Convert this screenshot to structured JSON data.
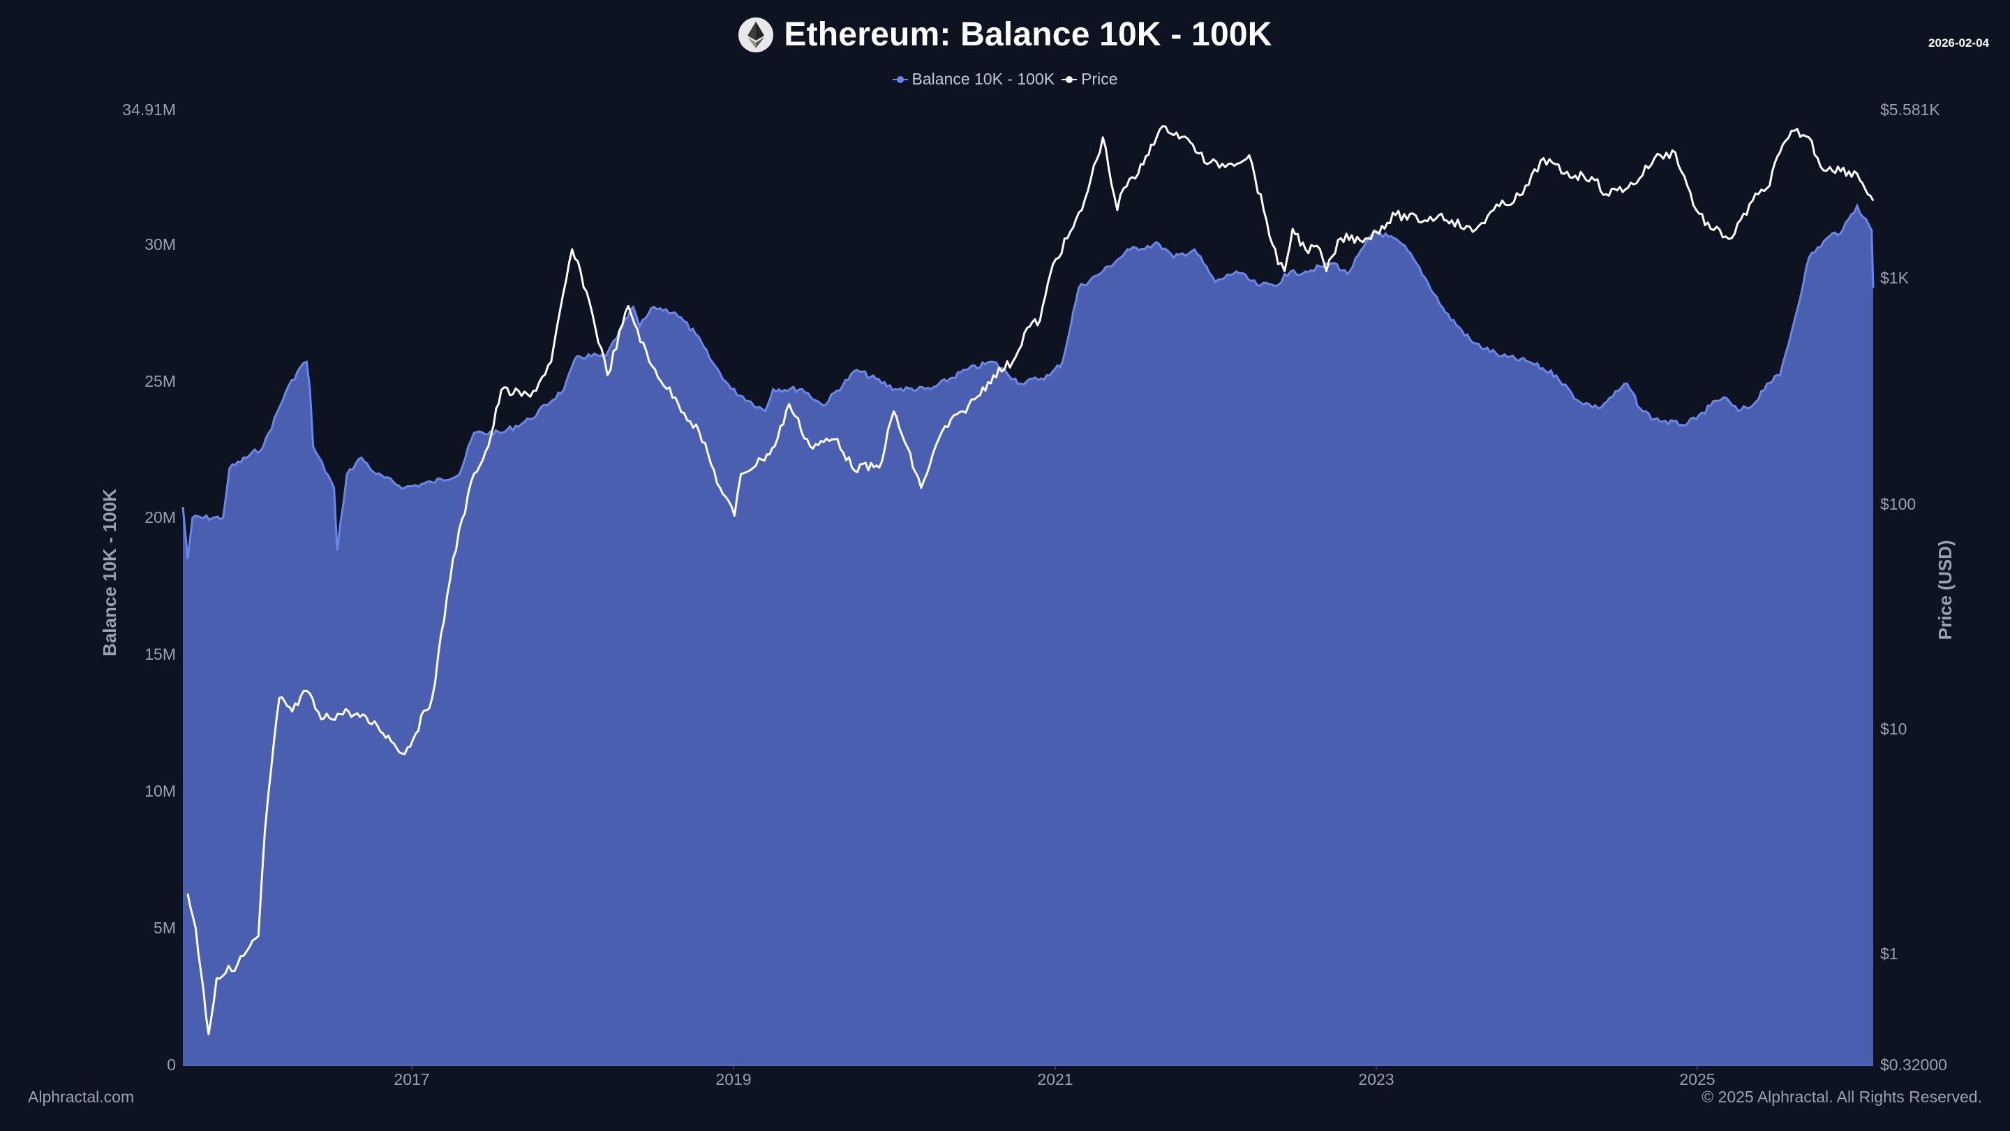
{
  "header": {
    "title": "Ethereum: Balance 10K - 100K",
    "date": "2026-02-04",
    "icon": "ethereum-icon"
  },
  "legend": [
    {
      "label": "Balance 10K - 100K",
      "color": "#6a86e8"
    },
    {
      "label": "Price",
      "color": "#ffffff"
    }
  ],
  "axes": {
    "left_title": "Balance 10K - 100K",
    "right_title": "Price (USD)",
    "left_ticks": [
      "0",
      "5M",
      "10M",
      "15M",
      "20M",
      "25M",
      "30M",
      "34.91M"
    ],
    "right_ticks": [
      "$0.32000",
      "$1",
      "$10",
      "$100",
      "$1K",
      "$5.581K"
    ],
    "x_ticks": [
      "2017",
      "2019",
      "2021",
      "2023",
      "2025"
    ]
  },
  "watermark": "Alphractal",
  "footer": {
    "left": "Alphractal.com",
    "right": "© 2025 Alphractal. All Rights Reserved."
  },
  "colors": {
    "background": "#0d1320",
    "area_fill": "#4a5faf",
    "area_line": "#6a86e8",
    "price_line": "#ffffff",
    "axis_text": "#9aa0ad"
  },
  "chart_data": {
    "type": "area",
    "title": "Ethereum: Balance 10K - 100K",
    "xlabel": "",
    "ylabel": "Balance 10K - 100K",
    "y2label": "Price (USD)",
    "xlim": [
      2015.58,
      2026.09
    ],
    "ylim": [
      0,
      34.91
    ],
    "y2lim": [
      0.32,
      5581
    ],
    "y2scale": "log",
    "grid": false,
    "legend_position": "top-center",
    "series": [
      {
        "name": "Balance 10K - 100K",
        "unit": "M ETH",
        "type": "area",
        "axis": "left",
        "x": [
          2015.58,
          2015.61,
          2015.64,
          2015.83,
          2015.87,
          2016.08,
          2016.22,
          2016.31,
          2016.35,
          2016.37,
          2016.39,
          2016.52,
          2016.54,
          2016.6,
          2016.69,
          2016.78,
          2016.96,
          2017.13,
          2017.3,
          2017.39,
          2017.56,
          2017.74,
          2017.95,
          2018.03,
          2018.21,
          2018.38,
          2018.42,
          2018.51,
          2018.64,
          2018.77,
          2018.87,
          2018.99,
          2019.2,
          2019.25,
          2019.43,
          2019.56,
          2019.77,
          2020.01,
          2020.23,
          2020.45,
          2020.62,
          2020.79,
          2020.97,
          2021.05,
          2021.15,
          2021.3,
          2021.47,
          2021.65,
          2021.74,
          2021.87,
          2022.0,
          2022.13,
          2022.26,
          2022.39,
          2022.43,
          2022.56,
          2022.74,
          2022.82,
          2022.99,
          2023.16,
          2023.25,
          2023.43,
          2023.6,
          2023.78,
          2023.95,
          2024.12,
          2024.25,
          2024.38,
          2024.56,
          2024.64,
          2024.73,
          2024.9,
          2024.99,
          2025.08,
          2025.16,
          2025.25,
          2025.34,
          2025.43,
          2025.51,
          2025.6,
          2025.69,
          2025.82,
          2025.9,
          2025.99,
          2026.08,
          2026.09
        ],
        "values": [
          20.4,
          18.5,
          20.0,
          20.0,
          21.8,
          22.6,
          24.6,
          25.5,
          25.7,
          24.7,
          22.6,
          21.1,
          18.8,
          21.6,
          22.2,
          21.6,
          21.1,
          21.3,
          21.6,
          23.1,
          23.1,
          23.6,
          24.7,
          25.9,
          25.9,
          27.7,
          27.0,
          27.7,
          27.5,
          26.7,
          25.7,
          24.7,
          23.9,
          24.7,
          24.7,
          24.1,
          25.4,
          24.7,
          24.7,
          25.4,
          25.7,
          24.9,
          25.2,
          25.7,
          28.4,
          29.0,
          29.8,
          30.0,
          29.5,
          29.8,
          28.6,
          29.0,
          28.5,
          28.5,
          28.9,
          29.0,
          29.3,
          28.9,
          30.5,
          30.0,
          29.3,
          27.5,
          26.4,
          25.9,
          25.7,
          25.2,
          24.3,
          24.0,
          24.9,
          24.0,
          23.6,
          23.4,
          23.6,
          24.1,
          24.4,
          23.9,
          24.1,
          24.9,
          25.2,
          27.2,
          29.5,
          30.3,
          30.5,
          31.4,
          30.5,
          28.4
        ]
      },
      {
        "name": "Price",
        "unit": "USD",
        "type": "line",
        "axis": "right",
        "x": [
          2015.61,
          2015.66,
          2015.74,
          2015.79,
          2015.92,
          2016.05,
          2016.09,
          2016.13,
          2016.18,
          2016.26,
          2016.35,
          2016.44,
          2016.61,
          2016.79,
          2016.96,
          2017.13,
          2017.26,
          2017.39,
          2017.48,
          2017.56,
          2017.74,
          2017.87,
          2018.0,
          2018.09,
          2018.22,
          2018.35,
          2018.48,
          2018.66,
          2018.79,
          2018.92,
          2019.01,
          2019.05,
          2019.18,
          2019.26,
          2019.35,
          2019.48,
          2019.65,
          2019.74,
          2019.91,
          2020.0,
          2020.17,
          2020.3,
          2020.43,
          2020.52,
          2020.62,
          2020.74,
          2020.83,
          2020.91,
          2020.99,
          2021.08,
          2021.17,
          2021.3,
          2021.39,
          2021.43,
          2021.52,
          2021.6,
          2021.69,
          2021.86,
          2021.95,
          2022.08,
          2022.21,
          2022.3,
          2022.39,
          2022.43,
          2022.48,
          2022.56,
          2022.65,
          2022.69,
          2022.78,
          2022.95,
          2023.12,
          2023.3,
          2023.39,
          2023.47,
          2023.6,
          2023.73,
          2023.91,
          2024.04,
          2024.17,
          2024.34,
          2024.43,
          2024.6,
          2024.73,
          2024.86,
          2024.99,
          2025.08,
          2025.21,
          2025.34,
          2025.43,
          2025.51,
          2025.6,
          2025.69,
          2025.78,
          2025.82,
          2025.99,
          2026.09
        ],
        "values": [
          1.85,
          1.3,
          0.44,
          0.78,
          0.9,
          1.2,
          3.5,
          6.7,
          13.7,
          11.9,
          14.7,
          11.0,
          11.9,
          10.3,
          7.7,
          13.7,
          57,
          135,
          179,
          318,
          297,
          424,
          1340,
          870,
          370,
          750,
          424,
          276,
          208,
          117,
          88,
          135,
          156,
          179,
          276,
          179,
          193,
          144,
          144,
          256,
          117,
          208,
          256,
          297,
          370,
          424,
          600,
          650,
          1150,
          1500,
          2000,
          4200,
          2000,
          2500,
          2900,
          3900,
          4700,
          3900,
          3200,
          3200,
          3500,
          2000,
          1150,
          1070,
          1650,
          1340,
          1340,
          1070,
          1500,
          1500,
          1900,
          1800,
          1900,
          1800,
          1600,
          2000,
          2350,
          3400,
          2900,
          2800,
          2350,
          2600,
          3400,
          3600,
          2000,
          1650,
          1500,
          2200,
          2500,
          3600,
          4500,
          4200,
          3000,
          3100,
          2900,
          2200
        ]
      }
    ]
  }
}
